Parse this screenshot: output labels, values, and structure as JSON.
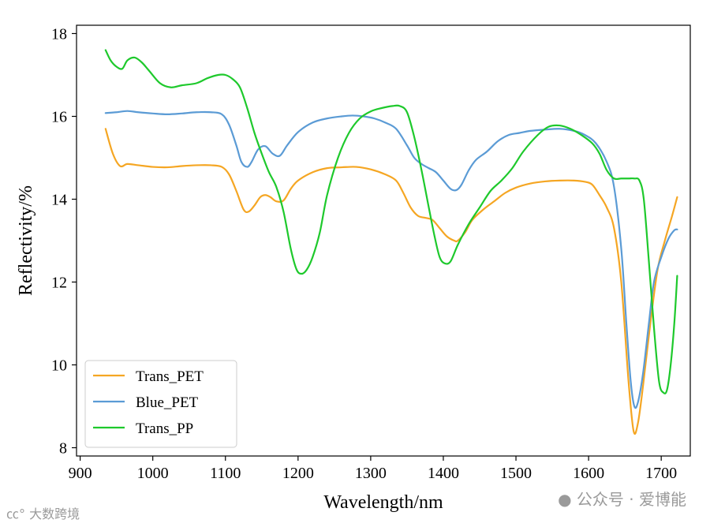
{
  "chart_data": {
    "type": "line",
    "xlabel": "Wavelength/nm",
    "ylabel": "Reflectivity/%",
    "xlim": [
      895,
      1740
    ],
    "ylim": [
      7.8,
      18.2
    ],
    "xticks": [
      900,
      1000,
      1100,
      1200,
      1300,
      1400,
      1500,
      1600,
      1700
    ],
    "yticks": [
      8,
      10,
      12,
      14,
      16,
      18
    ],
    "legend_position": "lower-left",
    "series": [
      {
        "name": "Trans_PET",
        "color": "#f5a623",
        "x": [
          935,
          945,
          955,
          965,
          980,
          1000,
          1020,
          1040,
          1060,
          1080,
          1095,
          1105,
          1115,
          1125,
          1132,
          1140,
          1148,
          1155,
          1162,
          1170,
          1180,
          1190,
          1200,
          1220,
          1240,
          1260,
          1280,
          1300,
          1320,
          1335,
          1345,
          1355,
          1365,
          1375,
          1385,
          1395,
          1405,
          1415,
          1420,
          1430,
          1440,
          1455,
          1470,
          1485,
          1500,
          1520,
          1540,
          1560,
          1580,
          1595,
          1605,
          1615,
          1625,
          1635,
          1645,
          1655,
          1662,
          1668,
          1675,
          1685,
          1695,
          1705,
          1715,
          1722
        ],
        "values": [
          15.7,
          15.1,
          14.8,
          14.85,
          14.82,
          14.78,
          14.77,
          14.8,
          14.82,
          14.82,
          14.78,
          14.6,
          14.2,
          13.75,
          13.7,
          13.85,
          14.05,
          14.1,
          14.05,
          13.95,
          13.97,
          14.25,
          14.45,
          14.65,
          14.75,
          14.77,
          14.78,
          14.72,
          14.6,
          14.45,
          14.15,
          13.8,
          13.6,
          13.55,
          13.5,
          13.3,
          13.1,
          13.0,
          13.0,
          13.2,
          13.5,
          13.75,
          13.95,
          14.15,
          14.28,
          14.38,
          14.43,
          14.45,
          14.45,
          14.42,
          14.35,
          14.1,
          13.8,
          13.3,
          12.0,
          9.6,
          8.4,
          8.6,
          9.5,
          11.0,
          12.3,
          13.0,
          13.6,
          14.05
        ]
      },
      {
        "name": "Blue_PET",
        "color": "#5b9bd5",
        "x": [
          935,
          950,
          965,
          980,
          1000,
          1020,
          1040,
          1060,
          1080,
          1095,
          1105,
          1115,
          1122,
          1130,
          1136,
          1145,
          1155,
          1165,
          1175,
          1185,
          1200,
          1220,
          1240,
          1260,
          1275,
          1290,
          1305,
          1320,
          1335,
          1350,
          1360,
          1370,
          1380,
          1390,
          1400,
          1410,
          1418,
          1425,
          1435,
          1445,
          1460,
          1475,
          1490,
          1505,
          1520,
          1540,
          1560,
          1580,
          1595,
          1610,
          1625,
          1635,
          1645,
          1652,
          1658,
          1663,
          1668,
          1675,
          1683,
          1690,
          1700,
          1710,
          1718,
          1722
        ],
        "values": [
          16.08,
          16.1,
          16.13,
          16.1,
          16.07,
          16.05,
          16.07,
          16.1,
          16.1,
          16.05,
          15.8,
          15.3,
          14.9,
          14.78,
          14.9,
          15.2,
          15.28,
          15.1,
          15.05,
          15.3,
          15.62,
          15.85,
          15.95,
          16.0,
          16.02,
          16.0,
          15.95,
          15.85,
          15.7,
          15.3,
          15.0,
          14.85,
          14.75,
          14.65,
          14.45,
          14.25,
          14.22,
          14.35,
          14.7,
          14.95,
          15.15,
          15.4,
          15.55,
          15.6,
          15.65,
          15.68,
          15.7,
          15.65,
          15.55,
          15.35,
          14.9,
          14.3,
          12.8,
          11.0,
          9.6,
          9.0,
          9.1,
          9.8,
          11.0,
          12.0,
          12.6,
          13.05,
          13.25,
          13.27
        ]
      },
      {
        "name": "Trans_PP",
        "color": "#1ec92c",
        "x": [
          935,
          942,
          950,
          958,
          965,
          975,
          985,
          995,
          1010,
          1025,
          1040,
          1060,
          1075,
          1090,
          1100,
          1110,
          1120,
          1130,
          1140,
          1150,
          1160,
          1170,
          1180,
          1190,
          1198,
          1205,
          1212,
          1220,
          1230,
          1240,
          1255,
          1270,
          1285,
          1300,
          1315,
          1330,
          1340,
          1350,
          1360,
          1370,
          1380,
          1388,
          1395,
          1402,
          1410,
          1420,
          1435,
          1450,
          1465,
          1480,
          1495,
          1510,
          1530,
          1545,
          1560,
          1575,
          1590,
          1605,
          1615,
          1625,
          1635,
          1645,
          1655,
          1663,
          1670,
          1676,
          1683,
          1690,
          1697,
          1703,
          1708,
          1713,
          1718,
          1722
        ],
        "values": [
          17.6,
          17.35,
          17.2,
          17.15,
          17.35,
          17.42,
          17.3,
          17.1,
          16.8,
          16.7,
          16.75,
          16.8,
          16.92,
          17.0,
          17.0,
          16.9,
          16.7,
          16.2,
          15.6,
          15.1,
          14.65,
          14.3,
          13.7,
          12.8,
          12.3,
          12.2,
          12.3,
          12.6,
          13.2,
          14.1,
          15.0,
          15.6,
          15.95,
          16.12,
          16.2,
          16.25,
          16.25,
          16.1,
          15.5,
          14.7,
          13.8,
          13.1,
          12.6,
          12.45,
          12.5,
          12.9,
          13.4,
          13.8,
          14.2,
          14.45,
          14.75,
          15.15,
          15.55,
          15.75,
          15.78,
          15.7,
          15.55,
          15.35,
          15.1,
          14.7,
          14.5,
          14.5,
          14.5,
          14.5,
          14.45,
          14.0,
          12.5,
          10.9,
          9.6,
          9.33,
          9.4,
          10.0,
          11.0,
          12.15
        ]
      }
    ]
  },
  "watermark": {
    "left_text": "大数跨境",
    "right_text": "公众号 · 爱博能"
  }
}
